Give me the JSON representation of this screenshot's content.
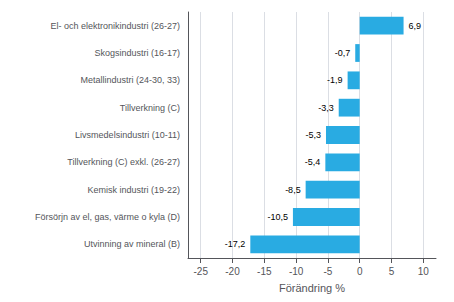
{
  "chart_data": {
    "type": "bar",
    "orientation": "horizontal",
    "categories": [
      "Utvinning av mineral (B)",
      "Försörjn av el, gas, värme o kyla (D)",
      "Kemisk industri (19-22)",
      "Tillverkning (C) exkl. (26-27)",
      "Livsmedelsindustri (10-11)",
      "Tillverkning (C)",
      "Metallindustri (24-30, 33)",
      "Skogsindustri (16-17)",
      "El- och elektronikindustri (26-27)"
    ],
    "values": [
      -17.2,
      -10.5,
      -8.5,
      -5.4,
      -5.3,
      -3.3,
      -1.9,
      -0.7,
      6.9
    ],
    "value_labels": [
      "-17,2",
      "-10,5",
      "-8,5",
      "-5,4",
      "-5,3",
      "-3,3",
      "-1,9",
      "-0,7",
      "6,9"
    ],
    "data_labels": true,
    "color": "#29ABE2",
    "xlabel": "Förändring %",
    "xlim": [
      -27,
      12
    ],
    "xticks": [
      -25,
      -20,
      -15,
      -10,
      -5,
      0,
      5,
      10
    ],
    "grid": true
  }
}
